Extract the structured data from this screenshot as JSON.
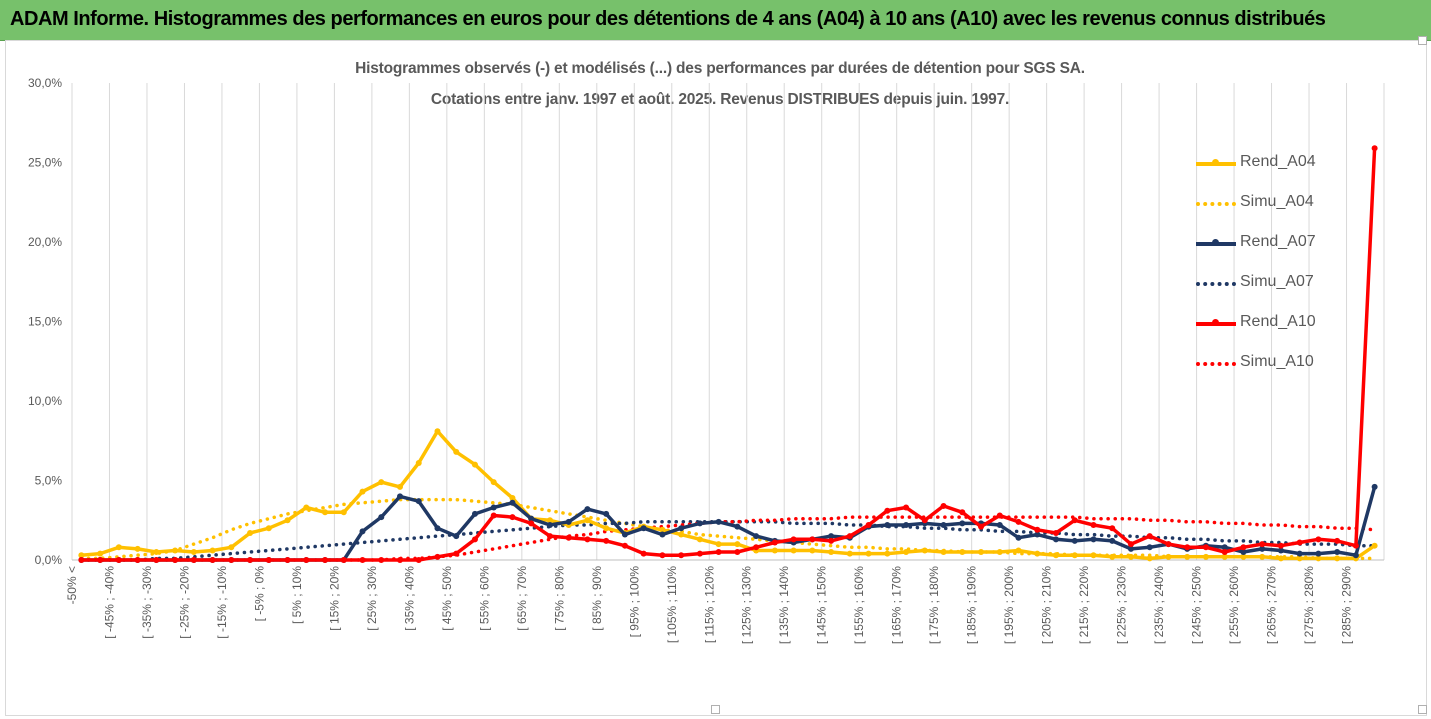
{
  "header": {
    "title": "ADAM Informe. Histogrammes des performances en euros pour des détentions de 4 ans (A04) à 10 ans (A10) avec les revenus connus distribués",
    "background": "#77c16b"
  },
  "chart_data": {
    "type": "line",
    "title": "Histogrammes observés (-) et modélisés (...) des performances par durées de détention pour SGS SA.",
    "subtitle": "Cotations entre janv. 1997 et août. 2025. Revenus DISTRIBUES depuis juin. 1997.",
    "y_ticks": [
      "0,0%",
      "5,0%",
      "10,0%",
      "15,0%",
      "20,0%",
      "25,0%",
      "30,0%"
    ],
    "ylim": [
      0,
      30
    ],
    "grid": "vertical",
    "legend_position": "right",
    "x_tick_labels": [
      "-50% <",
      "[ -45% ; -40%",
      "[ -35% ; -30%",
      "[ -25% ; -20%",
      "[ -15% ; -10%",
      "[ -5% ; 0%",
      "[ 5% ; 10%",
      "[ 15% ; 20%",
      "[ 25% ; 30%",
      "[ 35% ; 40%",
      "[ 45% ; 50%",
      "[ 55% ; 60%",
      "[ 65% ; 70%",
      "[ 75% ; 80%",
      "[ 85% ; 90%",
      "[ 95% ; 100%",
      "[ 105% ; 110%",
      "[ 115% ; 120%",
      "[ 125% ; 130%",
      "[ 135% ; 140%",
      "[ 145% ; 150%",
      "[ 155% ; 160%",
      "[ 165% ; 170%",
      "[ 175% ; 180%",
      "[ 185% ; 190%",
      "[ 195% ; 200%",
      "[ 205% ; 210%",
      "[ 215% ; 220%",
      "[ 225% ; 230%",
      "[ 235% ; 240%",
      "[ 245% ; 250%",
      "[ 255% ; 260%",
      "[ 265% ; 270%",
      "[ 275% ; 280%",
      "[ 285% ; 290%"
    ],
    "category_count": 70,
    "series": [
      {
        "name": "Rend_A04",
        "color": "#ffc000",
        "style": "solid",
        "marker": true,
        "values": [
          0.3,
          0.4,
          0.8,
          0.7,
          0.5,
          0.6,
          0.5,
          0.6,
          0.8,
          1.7,
          2.0,
          2.5,
          3.3,
          3.0,
          3.0,
          4.3,
          4.9,
          4.6,
          6.1,
          8.1,
          6.8,
          6.0,
          4.9,
          3.9,
          2.6,
          2.5,
          2.2,
          2.5,
          2.0,
          1.7,
          2.1,
          1.9,
          1.6,
          1.3,
          1.0,
          1.0,
          0.6,
          0.6,
          0.6,
          0.6,
          0.5,
          0.4,
          0.4,
          0.4,
          0.5,
          0.6,
          0.5,
          0.5,
          0.5,
          0.5,
          0.6,
          0.4,
          0.3,
          0.3,
          0.3,
          0.2,
          0.2,
          0.1,
          0.2,
          0.2,
          0.2,
          0.2,
          0.2,
          0.2,
          0.1,
          0.1,
          0.1,
          0.1,
          0.1,
          0.9
        ]
      },
      {
        "name": "Simu_A04",
        "color": "#ffc000",
        "style": "dotted",
        "marker": false,
        "values": [
          0.1,
          0.1,
          0.2,
          0.3,
          0.4,
          0.6,
          1.0,
          1.4,
          1.9,
          2.3,
          2.6,
          2.9,
          3.1,
          3.3,
          3.5,
          3.6,
          3.7,
          3.8,
          3.8,
          3.8,
          3.8,
          3.7,
          3.6,
          3.5,
          3.3,
          3.1,
          2.9,
          2.7,
          2.5,
          2.3,
          2.1,
          1.9,
          1.8,
          1.6,
          1.5,
          1.4,
          1.3,
          1.2,
          1.1,
          1.0,
          0.9,
          0.8,
          0.8,
          0.7,
          0.7,
          0.6,
          0.6,
          0.5,
          0.5,
          0.5,
          0.4,
          0.4,
          0.4,
          0.3,
          0.3,
          0.3,
          0.3,
          0.3,
          0.2,
          0.2,
          0.2,
          0.2,
          0.2,
          0.2,
          0.2,
          0.2,
          0.1,
          0.1,
          0.1,
          0.1
        ]
      },
      {
        "name": "Rend_A07",
        "color": "#1f3864",
        "style": "solid",
        "marker": true,
        "values": [
          0,
          0,
          0,
          0,
          0,
          0,
          0,
          0,
          0,
          0,
          0,
          0,
          0,
          0,
          0,
          1.8,
          2.7,
          4.0,
          3.7,
          2.0,
          1.5,
          2.9,
          3.3,
          3.6,
          2.6,
          2.2,
          2.4,
          3.2,
          2.9,
          1.6,
          2.0,
          1.6,
          2.0,
          2.3,
          2.4,
          2.1,
          1.5,
          1.2,
          1.1,
          1.3,
          1.5,
          1.4,
          2.1,
          2.2,
          2.2,
          2.3,
          2.2,
          2.3,
          2.3,
          2.2,
          1.4,
          1.6,
          1.3,
          1.2,
          1.3,
          1.2,
          0.7,
          0.8,
          1.0,
          0.7,
          0.9,
          0.8,
          0.5,
          0.7,
          0.6,
          0.4,
          0.4,
          0.5,
          0.3,
          4.6
        ]
      },
      {
        "name": "Simu_A07",
        "color": "#1f3864",
        "style": "dotted",
        "marker": false,
        "values": [
          0.0,
          0.0,
          0.0,
          0.0,
          0.1,
          0.1,
          0.2,
          0.3,
          0.4,
          0.5,
          0.6,
          0.7,
          0.8,
          0.9,
          1.0,
          1.1,
          1.2,
          1.3,
          1.4,
          1.5,
          1.6,
          1.7,
          1.8,
          1.9,
          2.0,
          2.1,
          2.2,
          2.2,
          2.3,
          2.3,
          2.4,
          2.4,
          2.4,
          2.4,
          2.4,
          2.4,
          2.4,
          2.4,
          2.3,
          2.3,
          2.3,
          2.2,
          2.2,
          2.1,
          2.1,
          2.0,
          2.0,
          1.9,
          1.9,
          1.8,
          1.8,
          1.7,
          1.7,
          1.6,
          1.6,
          1.5,
          1.5,
          1.4,
          1.4,
          1.3,
          1.3,
          1.2,
          1.2,
          1.1,
          1.1,
          1.0,
          1.0,
          1.0,
          0.9,
          0.9
        ]
      },
      {
        "name": "Rend_A10",
        "color": "#ff0000",
        "style": "solid",
        "marker": true,
        "values": [
          0,
          0,
          0,
          0,
          0,
          0,
          0,
          0,
          0,
          0,
          0,
          0,
          0,
          0,
          0,
          0,
          0,
          0,
          0,
          0.2,
          0.4,
          1.3,
          2.8,
          2.7,
          2.3,
          1.5,
          1.4,
          1.3,
          1.2,
          0.9,
          0.4,
          0.3,
          0.3,
          0.4,
          0.5,
          0.5,
          0.8,
          1.1,
          1.3,
          1.3,
          1.2,
          1.5,
          2.2,
          3.1,
          3.3,
          2.5,
          3.4,
          3.0,
          2.1,
          2.8,
          2.4,
          1.9,
          1.7,
          2.5,
          2.2,
          2.0,
          1.0,
          1.5,
          1.0,
          0.8,
          0.8,
          0.5,
          0.8,
          1.0,
          0.9,
          1.1,
          1.3,
          1.2,
          0.9,
          25.9
        ]
      },
      {
        "name": "Simu_A10",
        "color": "#ff0000",
        "style": "dotted",
        "marker": false,
        "values": [
          0.0,
          0.0,
          0.0,
          0.0,
          0.0,
          0.0,
          0.0,
          0.0,
          0.0,
          0.0,
          0.0,
          0.0,
          0.0,
          0.0,
          0.0,
          0.0,
          0.0,
          0.1,
          0.1,
          0.2,
          0.3,
          0.5,
          0.7,
          0.9,
          1.1,
          1.3,
          1.5,
          1.6,
          1.8,
          1.9,
          2.0,
          2.1,
          2.2,
          2.3,
          2.4,
          2.4,
          2.5,
          2.5,
          2.6,
          2.6,
          2.6,
          2.7,
          2.7,
          2.7,
          2.7,
          2.7,
          2.7,
          2.7,
          2.7,
          2.7,
          2.7,
          2.7,
          2.7,
          2.7,
          2.6,
          2.6,
          2.6,
          2.5,
          2.5,
          2.4,
          2.4,
          2.3,
          2.3,
          2.2,
          2.2,
          2.1,
          2.1,
          2.0,
          2.0,
          1.9
        ]
      }
    ]
  }
}
